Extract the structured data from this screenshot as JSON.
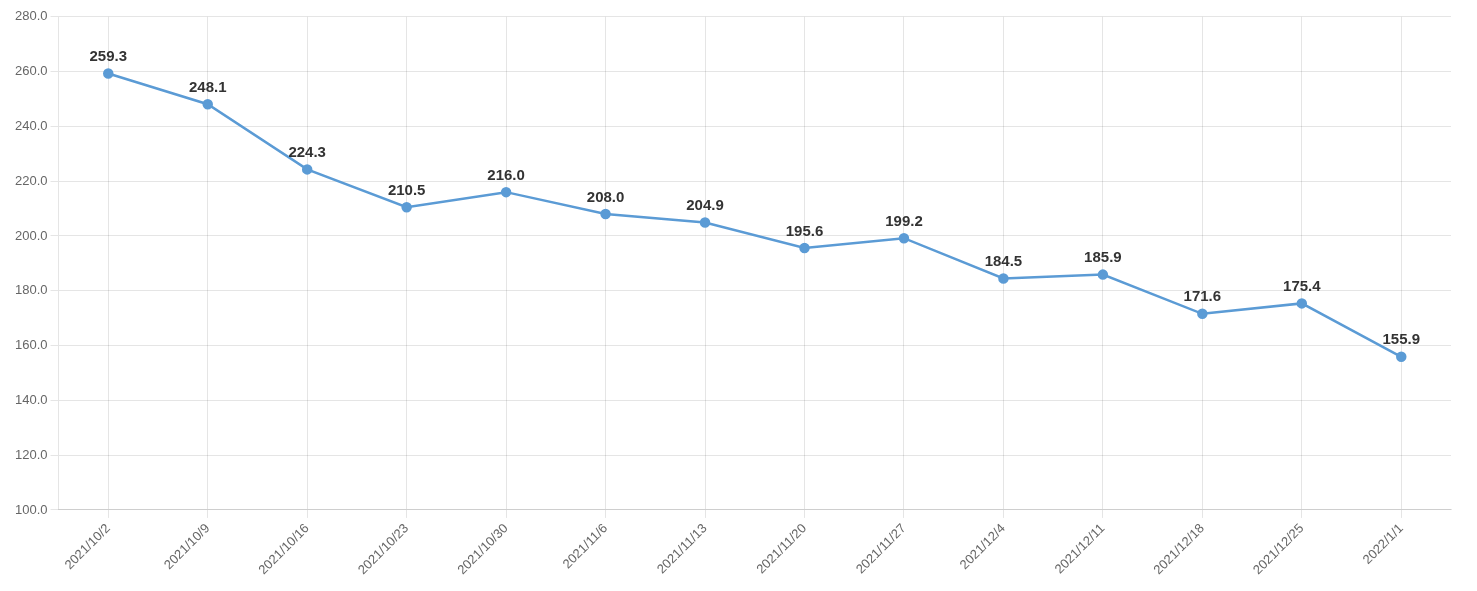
{
  "chart_data": {
    "type": "line",
    "categories": [
      "2021/10/2",
      "2021/10/9",
      "2021/10/16",
      "2021/10/23",
      "2021/10/30",
      "2021/11/6",
      "2021/11/13",
      "2021/11/20",
      "2021/11/27",
      "2021/12/4",
      "2021/12/11",
      "2021/12/18",
      "2021/12/25",
      "2022/1/1"
    ],
    "values": [
      259.3,
      248.1,
      224.3,
      210.5,
      216.0,
      208.0,
      204.9,
      195.6,
      199.2,
      184.5,
      185.9,
      171.6,
      175.4,
      155.9
    ],
    "value_labels": [
      "259.3",
      "248.1",
      "224.3",
      "210.5",
      "216.0",
      "208.0",
      "204.9",
      "195.6",
      "199.2",
      "184.5",
      "185.9",
      "171.6",
      "175.4",
      "155.9"
    ],
    "color": "#5B9BD5",
    "marker": "circle",
    "ylim": [
      100.0,
      280.0
    ],
    "yticks": [
      {
        "value": 100.0,
        "label": "100.0"
      },
      {
        "value": 120.0,
        "label": "120.0"
      },
      {
        "value": 140.0,
        "label": "140.0"
      },
      {
        "value": 160.0,
        "label": "160.0"
      },
      {
        "value": 180.0,
        "label": "180.0"
      },
      {
        "value": 200.0,
        "label": "200.0"
      },
      {
        "value": 220.0,
        "label": "220.0"
      },
      {
        "value": 240.0,
        "label": "240.0"
      },
      {
        "value": 260.0,
        "label": "260.0"
      },
      {
        "value": 280.0,
        "label": "280.0"
      }
    ],
    "grid": true,
    "data_labels": true
  }
}
